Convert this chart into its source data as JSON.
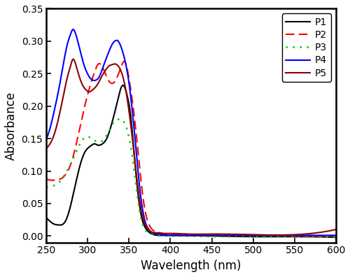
{
  "title": "",
  "xlabel": "Wavelength (nm)",
  "ylabel": "Absorbance",
  "xlim": [
    250,
    600
  ],
  "ylim": [
    -0.01,
    0.35
  ],
  "yticks": [
    0.0,
    0.05,
    0.1,
    0.15,
    0.2,
    0.25,
    0.3,
    0.35
  ],
  "xticks": [
    250,
    300,
    350,
    400,
    450,
    500,
    550,
    600
  ],
  "series": {
    "P1": {
      "color": "#000000",
      "linestyle": "solid",
      "linewidth": 1.5,
      "points": [
        [
          250,
          0.028
        ],
        [
          255,
          0.022
        ],
        [
          260,
          0.018
        ],
        [
          265,
          0.017
        ],
        [
          270,
          0.018
        ],
        [
          275,
          0.028
        ],
        [
          280,
          0.05
        ],
        [
          285,
          0.078
        ],
        [
          290,
          0.105
        ],
        [
          295,
          0.125
        ],
        [
          300,
          0.135
        ],
        [
          305,
          0.14
        ],
        [
          308,
          0.142
        ],
        [
          312,
          0.14
        ],
        [
          318,
          0.142
        ],
        [
          323,
          0.15
        ],
        [
          328,
          0.168
        ],
        [
          333,
          0.192
        ],
        [
          338,
          0.218
        ],
        [
          341,
          0.23
        ],
        [
          343,
          0.232
        ],
        [
          345,
          0.228
        ],
        [
          348,
          0.215
        ],
        [
          352,
          0.185
        ],
        [
          356,
          0.13
        ],
        [
          360,
          0.075
        ],
        [
          365,
          0.03
        ],
        [
          370,
          0.012
        ],
        [
          375,
          0.005
        ],
        [
          380,
          0.002
        ],
        [
          390,
          0.001
        ],
        [
          400,
          0.001
        ],
        [
          450,
          0.0
        ],
        [
          500,
          -0.001
        ],
        [
          550,
          -0.001
        ],
        [
          600,
          -0.002
        ]
      ]
    },
    "P2": {
      "color": "#ff0000",
      "linestyle": "dashed",
      "linewidth": 1.5,
      "points": [
        [
          250,
          0.088
        ],
        [
          255,
          0.086
        ],
        [
          260,
          0.086
        ],
        [
          265,
          0.087
        ],
        [
          270,
          0.09
        ],
        [
          275,
          0.098
        ],
        [
          280,
          0.112
        ],
        [
          285,
          0.135
        ],
        [
          290,
          0.163
        ],
        [
          295,
          0.192
        ],
        [
          300,
          0.218
        ],
        [
          305,
          0.24
        ],
        [
          310,
          0.258
        ],
        [
          313,
          0.265
        ],
        [
          315,
          0.265
        ],
        [
          318,
          0.26
        ],
        [
          322,
          0.248
        ],
        [
          326,
          0.238
        ],
        [
          330,
          0.235
        ],
        [
          334,
          0.24
        ],
        [
          338,
          0.252
        ],
        [
          341,
          0.262
        ],
        [
          343,
          0.268
        ],
        [
          345,
          0.268
        ],
        [
          347,
          0.262
        ],
        [
          350,
          0.242
        ],
        [
          354,
          0.208
        ],
        [
          358,
          0.165
        ],
        [
          362,
          0.115
        ],
        [
          366,
          0.068
        ],
        [
          370,
          0.035
        ],
        [
          374,
          0.018
        ],
        [
          378,
          0.01
        ],
        [
          385,
          0.006
        ],
        [
          390,
          0.004
        ],
        [
          400,
          0.003
        ],
        [
          420,
          0.002
        ],
        [
          450,
          0.001
        ],
        [
          500,
          0.001
        ],
        [
          550,
          0.0
        ],
        [
          600,
          0.0
        ]
      ]
    },
    "P3": {
      "color": "#00cc00",
      "linestyle": "dotted",
      "linewidth": 1.8,
      "points": [
        [
          250,
          0.075
        ],
        [
          255,
          0.076
        ],
        [
          260,
          0.078
        ],
        [
          265,
          0.082
        ],
        [
          270,
          0.09
        ],
        [
          275,
          0.1
        ],
        [
          280,
          0.112
        ],
        [
          285,
          0.126
        ],
        [
          290,
          0.14
        ],
        [
          295,
          0.15
        ],
        [
          300,
          0.153
        ],
        [
          305,
          0.15
        ],
        [
          310,
          0.146
        ],
        [
          315,
          0.145
        ],
        [
          318,
          0.147
        ],
        [
          322,
          0.153
        ],
        [
          326,
          0.162
        ],
        [
          330,
          0.172
        ],
        [
          334,
          0.178
        ],
        [
          338,
          0.18
        ],
        [
          341,
          0.18
        ],
        [
          344,
          0.175
        ],
        [
          348,
          0.162
        ],
        [
          352,
          0.138
        ],
        [
          356,
          0.102
        ],
        [
          360,
          0.062
        ],
        [
          364,
          0.03
        ],
        [
          368,
          0.013
        ],
        [
          372,
          0.006
        ],
        [
          378,
          0.003
        ],
        [
          385,
          0.001
        ],
        [
          400,
          0.0
        ],
        [
          450,
          -0.001
        ],
        [
          500,
          -0.001
        ],
        [
          550,
          -0.001
        ],
        [
          600,
          -0.002
        ]
      ]
    },
    "P4": {
      "color": "#0000ff",
      "linestyle": "solid",
      "linewidth": 1.5,
      "points": [
        [
          250,
          0.15
        ],
        [
          255,
          0.168
        ],
        [
          260,
          0.195
        ],
        [
          265,
          0.225
        ],
        [
          270,
          0.26
        ],
        [
          275,
          0.293
        ],
        [
          280,
          0.313
        ],
        [
          282,
          0.318
        ],
        [
          284,
          0.316
        ],
        [
          287,
          0.305
        ],
        [
          290,
          0.29
        ],
        [
          294,
          0.27
        ],
        [
          298,
          0.255
        ],
        [
          302,
          0.245
        ],
        [
          306,
          0.24
        ],
        [
          310,
          0.24
        ],
        [
          314,
          0.245
        ],
        [
          318,
          0.258
        ],
        [
          322,
          0.272
        ],
        [
          326,
          0.285
        ],
        [
          330,
          0.296
        ],
        [
          334,
          0.301
        ],
        [
          336,
          0.301
        ],
        [
          338,
          0.298
        ],
        [
          342,
          0.285
        ],
        [
          346,
          0.265
        ],
        [
          350,
          0.235
        ],
        [
          354,
          0.192
        ],
        [
          358,
          0.14
        ],
        [
          362,
          0.085
        ],
        [
          366,
          0.044
        ],
        [
          370,
          0.02
        ],
        [
          374,
          0.01
        ],
        [
          378,
          0.005
        ],
        [
          385,
          0.003
        ],
        [
          390,
          0.002
        ],
        [
          400,
          0.001
        ],
        [
          420,
          0.001
        ],
        [
          450,
          0.001
        ],
        [
          500,
          0.001
        ],
        [
          550,
          0.001
        ],
        [
          600,
          0.001
        ]
      ]
    },
    "P5": {
      "color": "#8b0000",
      "linestyle": "solid",
      "linewidth": 1.5,
      "points": [
        [
          250,
          0.135
        ],
        [
          255,
          0.143
        ],
        [
          260,
          0.158
        ],
        [
          265,
          0.182
        ],
        [
          270,
          0.212
        ],
        [
          275,
          0.242
        ],
        [
          280,
          0.265
        ],
        [
          282,
          0.272
        ],
        [
          284,
          0.27
        ],
        [
          287,
          0.258
        ],
        [
          290,
          0.245
        ],
        [
          294,
          0.232
        ],
        [
          298,
          0.225
        ],
        [
          302,
          0.222
        ],
        [
          306,
          0.225
        ],
        [
          310,
          0.23
        ],
        [
          314,
          0.238
        ],
        [
          318,
          0.248
        ],
        [
          322,
          0.256
        ],
        [
          326,
          0.262
        ],
        [
          330,
          0.264
        ],
        [
          333,
          0.265
        ],
        [
          336,
          0.263
        ],
        [
          340,
          0.255
        ],
        [
          344,
          0.238
        ],
        [
          348,
          0.21
        ],
        [
          352,
          0.172
        ],
        [
          356,
          0.128
        ],
        [
          360,
          0.082
        ],
        [
          364,
          0.045
        ],
        [
          368,
          0.022
        ],
        [
          372,
          0.012
        ],
        [
          376,
          0.007
        ],
        [
          382,
          0.005
        ],
        [
          390,
          0.004
        ],
        [
          400,
          0.004
        ],
        [
          420,
          0.003
        ],
        [
          450,
          0.003
        ],
        [
          500,
          0.002
        ],
        [
          550,
          0.002
        ],
        [
          600,
          0.01
        ]
      ]
    }
  },
  "legend_labels": [
    "P1",
    "P2",
    "P3",
    "P4",
    "P5"
  ],
  "legend_styles": [
    {
      "color": "#000000",
      "linestyle": "solid"
    },
    {
      "color": "#ff0000",
      "linestyle": "dashed"
    },
    {
      "color": "#00cc00",
      "linestyle": "dotted"
    },
    {
      "color": "#0000ff",
      "linestyle": "solid"
    },
    {
      "color": "#8b0000",
      "linestyle": "solid"
    }
  ]
}
